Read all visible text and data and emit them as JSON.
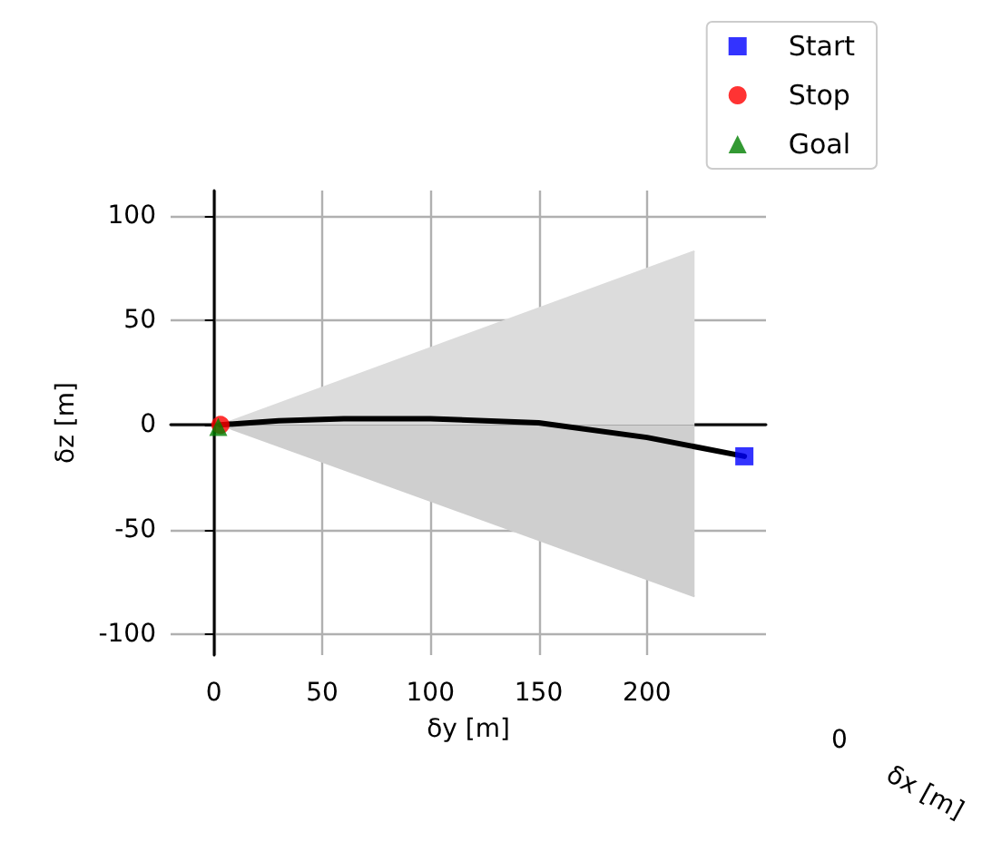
{
  "chart_data": {
    "type": "line",
    "xlabel": "δy [m]",
    "ylabel": "δz [m]",
    "xlim": [
      -20,
      255
    ],
    "xticks": [
      0,
      50,
      100,
      150,
      200
    ],
    "ylim": [
      -110,
      112
    ],
    "yticks": [
      -100,
      -50,
      0,
      50,
      100
    ],
    "grid": true,
    "legend": "top right",
    "annotations": [
      "0",
      "δx [m]"
    ],
    "series": [
      {
        "type": "area",
        "color": "#dcdcdc",
        "x": [
          3,
          222
        ],
        "values": [
          0,
          83
        ]
      },
      {
        "type": "area",
        "color": "#cfcfcf",
        "x": [
          3,
          222
        ],
        "values": [
          0,
          -82
        ]
      },
      {
        "color": "#000000",
        "x": [
          3,
          30,
          60,
          100,
          150,
          200,
          245
        ],
        "values": [
          0,
          2,
          3,
          3,
          1,
          -6,
          -15
        ]
      },
      {
        "type": "scatter",
        "name": "Start",
        "marker": "square",
        "color": "#0000ff",
        "x": [
          245
        ],
        "values": [
          -15
        ]
      },
      {
        "type": "scatter",
        "name": "Stop",
        "marker": "circle",
        "color": "#ff0000",
        "x": [
          3
        ],
        "values": [
          0
        ]
      },
      {
        "type": "scatter",
        "name": "Goal",
        "marker": "triangle",
        "color": "#008000",
        "x": [
          2
        ],
        "values": [
          -1
        ]
      }
    ]
  }
}
